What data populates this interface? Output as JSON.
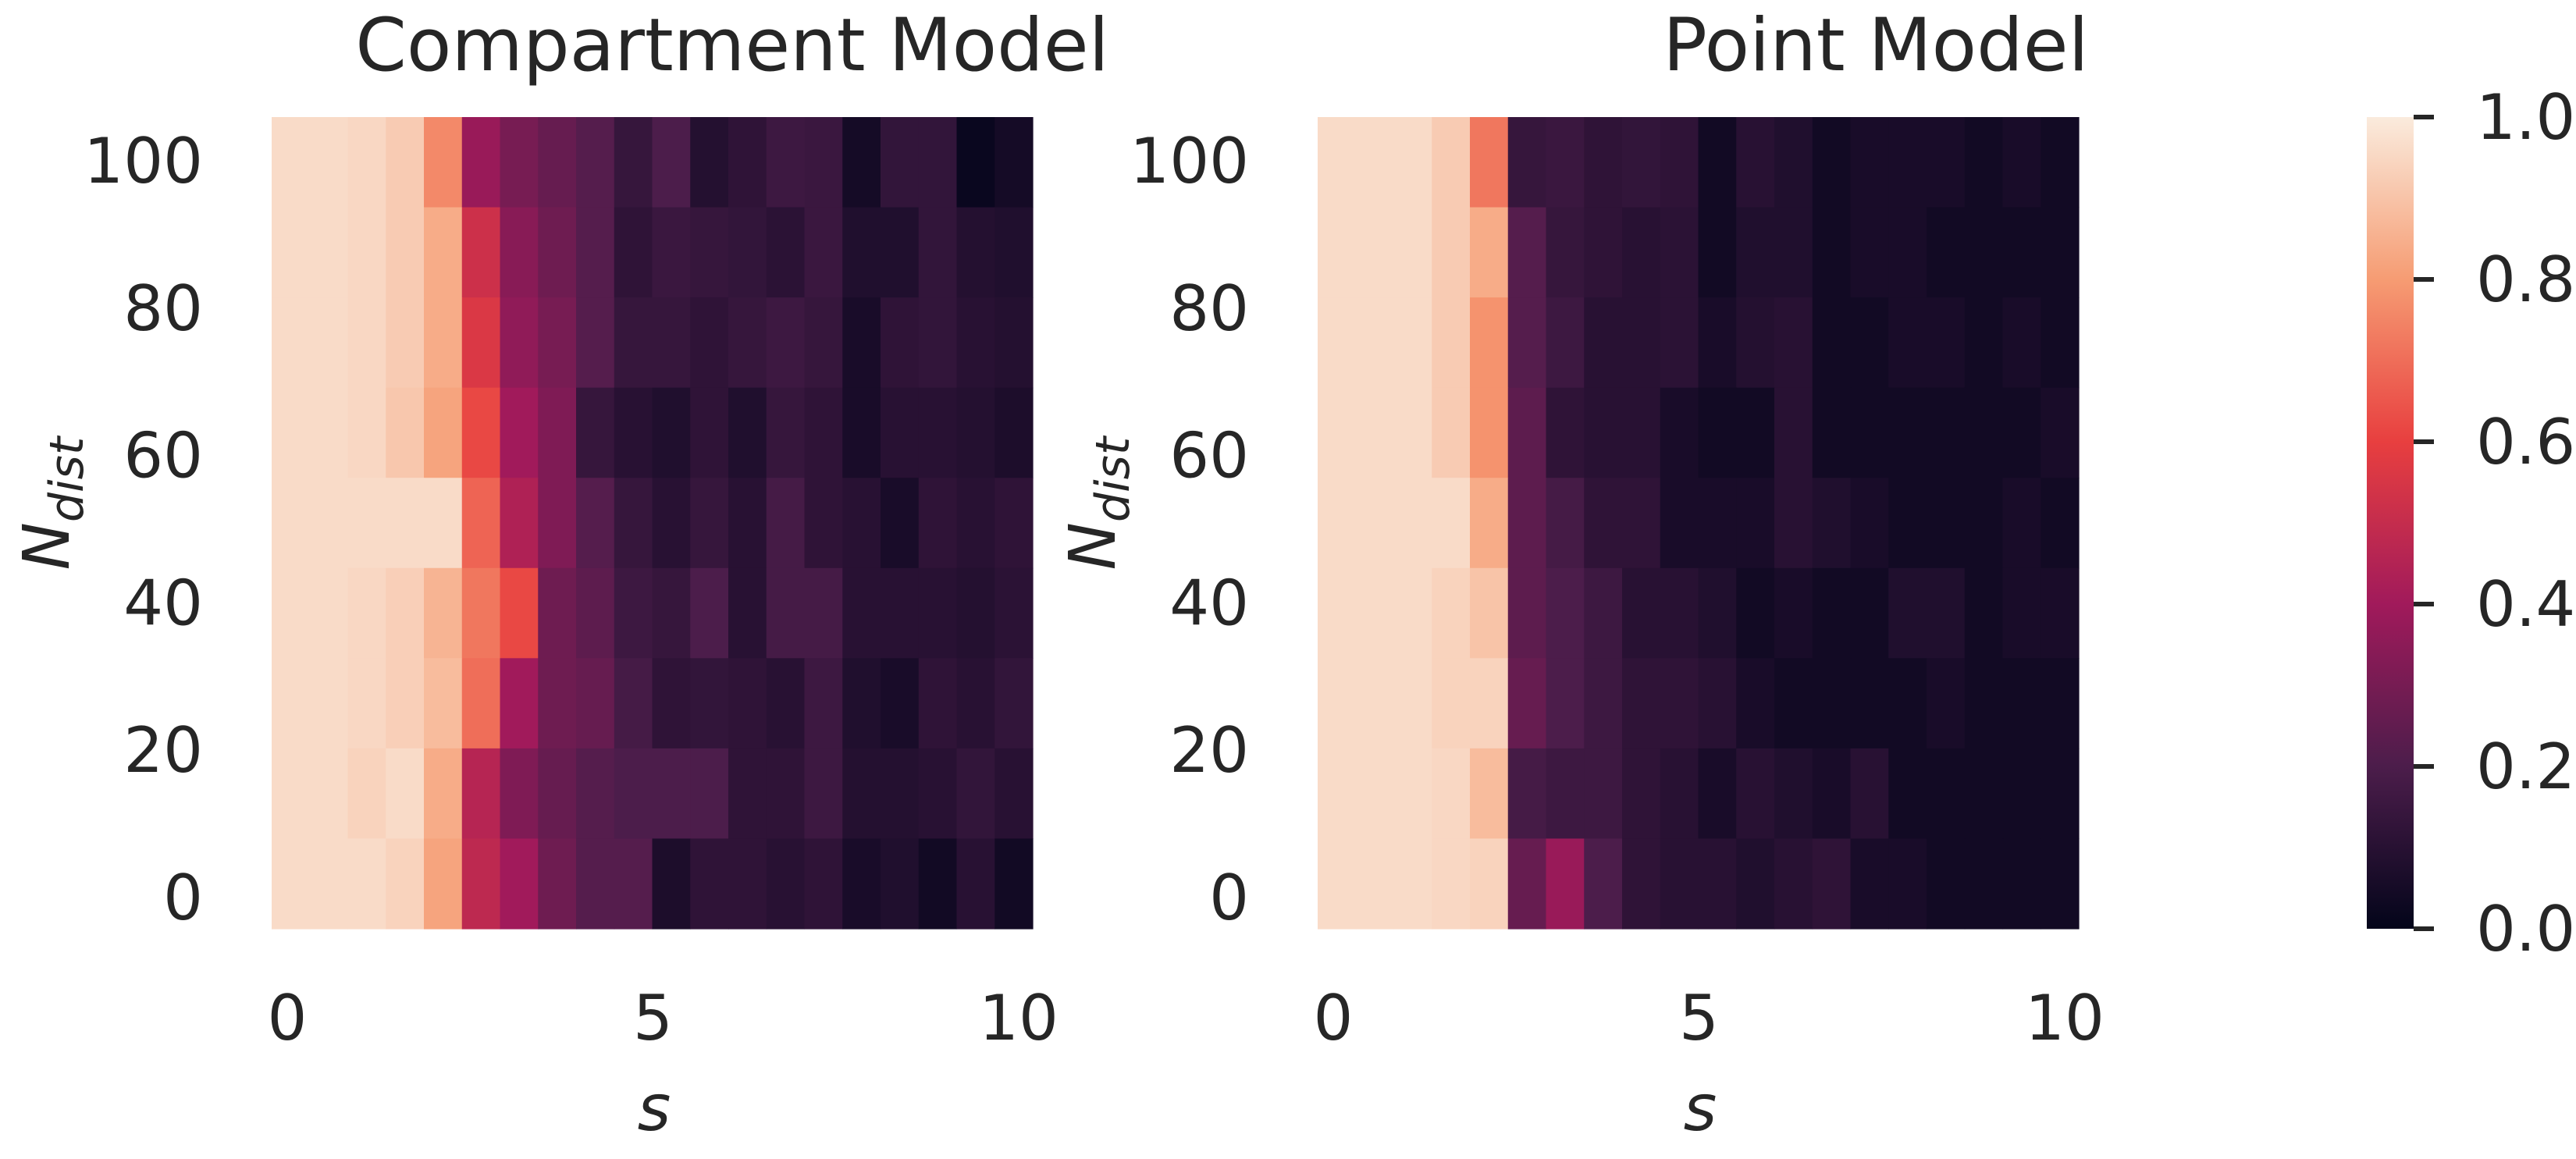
{
  "chart_data": [
    {
      "type": "heatmap",
      "title": "Compartment Model",
      "xlabel": "s",
      "ylabel": {
        "base": "N",
        "sub": "dist"
      },
      "x_range": [
        0,
        10
      ],
      "x_ticks": [
        "0",
        "5",
        "10"
      ],
      "y_range": [
        0,
        100
      ],
      "y_ticks": [
        "0",
        "20",
        "40",
        "60",
        "80",
        "100"
      ],
      "grid": false,
      "n_cols": 20,
      "rows_top_to_bottom_note": "rows ordered from y=100 (top) down to y=0 (bottom)",
      "values": [
        [
          0.96,
          0.96,
          0.95,
          0.92,
          0.76,
          0.38,
          0.3,
          0.26,
          0.22,
          0.14,
          0.2,
          0.09,
          0.12,
          0.16,
          0.15,
          0.05,
          0.13,
          0.13,
          0.02,
          0.05
        ],
        [
          0.96,
          0.96,
          0.95,
          0.92,
          0.84,
          0.52,
          0.34,
          0.28,
          0.22,
          0.12,
          0.15,
          0.14,
          0.13,
          0.11,
          0.15,
          0.08,
          0.08,
          0.13,
          0.09,
          0.08
        ],
        [
          0.96,
          0.96,
          0.95,
          0.92,
          0.84,
          0.56,
          0.36,
          0.3,
          0.22,
          0.14,
          0.14,
          0.12,
          0.14,
          0.16,
          0.14,
          0.06,
          0.12,
          0.13,
          0.1,
          0.09
        ],
        [
          0.96,
          0.96,
          0.95,
          0.91,
          0.82,
          0.62,
          0.4,
          0.32,
          0.14,
          0.1,
          0.08,
          0.12,
          0.08,
          0.14,
          0.12,
          0.06,
          0.1,
          0.1,
          0.09,
          0.07
        ],
        [
          0.96,
          0.96,
          0.96,
          0.96,
          0.96,
          0.68,
          0.44,
          0.32,
          0.22,
          0.14,
          0.1,
          0.14,
          0.1,
          0.18,
          0.12,
          0.1,
          0.06,
          0.12,
          0.1,
          0.12
        ],
        [
          0.96,
          0.96,
          0.95,
          0.93,
          0.86,
          0.72,
          0.62,
          0.28,
          0.24,
          0.16,
          0.14,
          0.2,
          0.1,
          0.18,
          0.18,
          0.1,
          0.1,
          0.1,
          0.09,
          0.11
        ],
        [
          0.96,
          0.96,
          0.95,
          0.93,
          0.88,
          0.7,
          0.4,
          0.28,
          0.26,
          0.18,
          0.12,
          0.13,
          0.12,
          0.1,
          0.16,
          0.08,
          0.06,
          0.12,
          0.1,
          0.13
        ],
        [
          0.96,
          0.96,
          0.94,
          0.96,
          0.84,
          0.46,
          0.32,
          0.26,
          0.22,
          0.2,
          0.2,
          0.2,
          0.12,
          0.12,
          0.16,
          0.09,
          0.09,
          0.1,
          0.13,
          0.1
        ],
        [
          0.96,
          0.96,
          0.96,
          0.94,
          0.82,
          0.48,
          0.4,
          0.28,
          0.22,
          0.22,
          0.07,
          0.12,
          0.12,
          0.1,
          0.12,
          0.06,
          0.08,
          0.04,
          0.1,
          0.04
        ]
      ]
    },
    {
      "type": "heatmap",
      "title": "Point Model",
      "xlabel": "s",
      "ylabel": {
        "base": "N",
        "sub": "dist"
      },
      "x_range": [
        0,
        10
      ],
      "x_ticks": [
        "0",
        "5",
        "10"
      ],
      "y_range": [
        0,
        100
      ],
      "y_ticks": [
        "0",
        "20",
        "40",
        "60",
        "80",
        "100"
      ],
      "grid": false,
      "n_cols": 20,
      "values": [
        [
          0.96,
          0.96,
          0.96,
          0.92,
          0.72,
          0.14,
          0.15,
          0.12,
          0.13,
          0.12,
          0.04,
          0.1,
          0.08,
          0.04,
          0.06,
          0.06,
          0.06,
          0.04,
          0.06,
          0.04
        ],
        [
          0.96,
          0.96,
          0.96,
          0.92,
          0.84,
          0.22,
          0.14,
          0.12,
          0.1,
          0.11,
          0.04,
          0.08,
          0.08,
          0.04,
          0.06,
          0.06,
          0.04,
          0.04,
          0.04,
          0.04
        ],
        [
          0.96,
          0.96,
          0.96,
          0.92,
          0.78,
          0.22,
          0.16,
          0.1,
          0.1,
          0.11,
          0.06,
          0.09,
          0.1,
          0.04,
          0.04,
          0.06,
          0.06,
          0.04,
          0.06,
          0.04
        ],
        [
          0.96,
          0.96,
          0.96,
          0.92,
          0.78,
          0.24,
          0.12,
          0.1,
          0.1,
          0.06,
          0.04,
          0.04,
          0.1,
          0.04,
          0.04,
          0.04,
          0.04,
          0.04,
          0.04,
          0.06
        ],
        [
          0.96,
          0.96,
          0.96,
          0.96,
          0.84,
          0.24,
          0.18,
          0.12,
          0.12,
          0.06,
          0.06,
          0.06,
          0.1,
          0.08,
          0.06,
          0.04,
          0.04,
          0.04,
          0.06,
          0.04
        ],
        [
          0.96,
          0.96,
          0.96,
          0.94,
          0.9,
          0.24,
          0.2,
          0.16,
          0.1,
          0.1,
          0.08,
          0.04,
          0.06,
          0.04,
          0.04,
          0.08,
          0.08,
          0.04,
          0.06,
          0.06
        ],
        [
          0.96,
          0.96,
          0.96,
          0.94,
          0.94,
          0.26,
          0.2,
          0.16,
          0.12,
          0.12,
          0.1,
          0.06,
          0.04,
          0.04,
          0.04,
          0.04,
          0.06,
          0.04,
          0.04,
          0.04
        ],
        [
          0.96,
          0.96,
          0.96,
          0.95,
          0.88,
          0.18,
          0.16,
          0.16,
          0.12,
          0.1,
          0.06,
          0.1,
          0.08,
          0.06,
          0.1,
          0.04,
          0.04,
          0.04,
          0.04,
          0.04
        ],
        [
          0.96,
          0.96,
          0.96,
          0.95,
          0.94,
          0.26,
          0.38,
          0.2,
          0.12,
          0.1,
          0.1,
          0.08,
          0.1,
          0.12,
          0.06,
          0.06,
          0.04,
          0.04,
          0.04,
          0.04
        ]
      ]
    }
  ],
  "colorbar": {
    "ticks": [
      "0.0",
      "0.2",
      "0.4",
      "0.6",
      "0.8",
      "1.0"
    ],
    "range": [
      0,
      1
    ],
    "colormap": "rocket",
    "colors": [
      "#03051a",
      "#4c1d4b",
      "#a11a5b",
      "#e83f3f",
      "#f69c73",
      "#faebdd"
    ]
  }
}
